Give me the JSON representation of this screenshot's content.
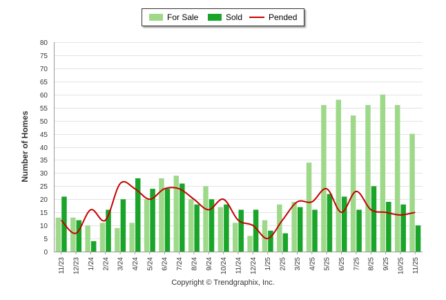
{
  "chart_data": {
    "type": "bar",
    "ylabel": "Number of Homes",
    "ylim": [
      0,
      80
    ],
    "yticks": [
      0,
      5,
      10,
      15,
      20,
      25,
      30,
      35,
      40,
      45,
      50,
      55,
      60,
      65,
      70,
      75,
      80
    ],
    "categories": [
      "11/23",
      "12/23",
      "1/24",
      "2/24",
      "3/24",
      "4/24",
      "5/24",
      "6/24",
      "7/24",
      "8/24",
      "9/24",
      "10/24",
      "11/24",
      "12/24",
      "1/25",
      "2/25",
      "3/25",
      "4/25",
      "5/25",
      "6/25",
      "7/25",
      "8/25",
      "9/25",
      "10/25",
      "11/25"
    ],
    "series": [
      {
        "name": "For Sale",
        "kind": "bar",
        "color": "#9ed98a",
        "values": [
          13,
          13,
          10,
          11,
          9,
          11,
          20,
          28,
          29,
          20,
          25,
          17,
          11,
          6,
          12,
          18,
          19,
          34,
          56,
          58,
          52,
          56,
          60,
          56,
          45
        ]
      },
      {
        "name": "Sold",
        "kind": "bar",
        "color": "#1aa52a",
        "values": [
          21,
          12,
          4,
          16,
          20,
          28,
          24,
          24,
          26,
          18,
          20,
          18,
          16,
          16,
          8,
          7,
          17,
          16,
          22,
          21,
          16,
          25,
          19,
          18,
          10
        ]
      },
      {
        "name": "Pended",
        "kind": "line",
        "color": "#c40000",
        "values": [
          12,
          7,
          16,
          12,
          26,
          24,
          20,
          24,
          24,
          20,
          16,
          20,
          12,
          10,
          5,
          12,
          19,
          19,
          24,
          15,
          23,
          16,
          15,
          14,
          15
        ]
      }
    ],
    "legend": [
      "For Sale",
      "Sold",
      "Pended"
    ],
    "legend_position": "top-center",
    "footer": "Copyright © Trendgraphix, Inc."
  }
}
